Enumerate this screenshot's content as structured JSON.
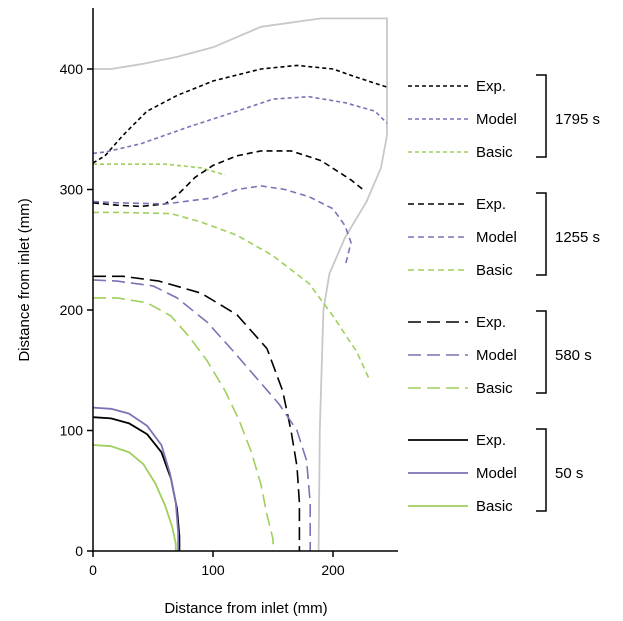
{
  "chart_data": {
    "type": "line",
    "xlabel": "Distance from inlet (mm)",
    "ylabel": "Distance from inlet (mm)",
    "xlim": [
      0,
      255
    ],
    "ylim": [
      0,
      450
    ],
    "xticks": [
      0,
      100,
      200
    ],
    "yticks": [
      0,
      100,
      200,
      300,
      400
    ],
    "grid": false,
    "legend_position": "right",
    "colors": {
      "exp": "#000000",
      "model": "#7a73b5",
      "basic": "#9fcf5c",
      "boundary": "#c8c8c8"
    },
    "boundary": {
      "x": [
        0,
        15,
        40,
        70,
        100,
        140,
        190,
        205,
        245,
        245,
        240,
        228,
        210,
        197,
        192,
        189,
        188
      ],
      "y": [
        400,
        400,
        404,
        410,
        418,
        435,
        442,
        442,
        442,
        345,
        318,
        290,
        260,
        230,
        200,
        100,
        0
      ]
    },
    "groups": [
      {
        "time": "1795 s",
        "series": [
          {
            "name": "Exp.",
            "x": [
              0,
              10,
              25,
              45,
              70,
              100,
              140,
              170,
              200,
              220,
              245
            ],
            "y": [
              322,
              328,
              345,
              365,
              378,
              390,
              400,
              403,
              400,
              393,
              385
            ]
          },
          {
            "name": "Model",
            "x": [
              0,
              10,
              40,
              80,
              120,
              150,
              180,
              210,
              235,
              245
            ],
            "y": [
              330,
              331,
              338,
              352,
              365,
              375,
              377,
              372,
              365,
              355
            ]
          },
          {
            "name": "Basic",
            "x": [
              0,
              20,
              60,
              90,
              110
            ],
            "y": [
              321,
              321,
              321,
              318,
              312
            ]
          }
        ]
      },
      {
        "time": "1255 s",
        "series": [
          {
            "name": "Exp.",
            "x": [
              0,
              20,
              40,
              60,
              70,
              85,
              100,
              120,
              140,
              165,
              190,
              215,
              225
            ],
            "y": [
              289,
              287,
              286,
              288,
              295,
              310,
              320,
              328,
              332,
              332,
              324,
              308,
              300
            ]
          },
          {
            "name": "Model",
            "x": [
              0,
              20,
              60,
              100,
              120,
              140,
              160,
              180,
              200,
              210,
              215,
              210
            ],
            "y": [
              290,
              289,
              288,
              293,
              300,
              303,
              300,
              294,
              284,
              270,
              256,
              236
            ]
          },
          {
            "name": "Basic",
            "x": [
              0,
              20,
              65,
              90,
              120,
              150,
              180,
              200,
              220,
              230
            ],
            "y": [
              281,
              281,
              280,
              273,
              262,
              245,
              222,
              195,
              165,
              143
            ]
          }
        ]
      },
      {
        "time": "580 s",
        "series": [
          {
            "name": "Exp.",
            "x": [
              0,
              25,
              55,
              90,
              120,
              145,
              158,
              165,
              170,
              172,
              172,
              172
            ],
            "y": [
              228,
              228,
              224,
              214,
              196,
              168,
              133,
              100,
              70,
              40,
              15,
              0
            ]
          },
          {
            "name": "Model",
            "x": [
              0,
              20,
              50,
              70,
              95,
              115,
              135,
              155,
              170,
              178,
              181,
              181
            ],
            "y": [
              225,
              224,
              220,
              210,
              190,
              168,
              145,
              122,
              100,
              75,
              40,
              0
            ]
          },
          {
            "name": "Basic",
            "x": [
              0,
              20,
              45,
              65,
              80,
              95,
              110,
              122,
              132,
              140,
              145,
              150,
              150
            ],
            "y": [
              210,
              210,
              206,
              195,
              178,
              158,
              133,
              108,
              82,
              55,
              30,
              10,
              0
            ]
          }
        ]
      },
      {
        "time": "50 s",
        "series": [
          {
            "name": "Exp.",
            "x": [
              0,
              15,
              30,
              45,
              57,
              65,
              70,
              72,
              72
            ],
            "y": [
              111,
              110,
              106,
              97,
              82,
              60,
              35,
              12,
              0
            ]
          },
          {
            "name": "Model",
            "x": [
              0,
              15,
              30,
              45,
              57,
              64,
              69,
              71,
              71
            ],
            "y": [
              119,
              118,
              114,
              104,
              88,
              65,
              40,
              15,
              0
            ]
          },
          {
            "name": "Basic",
            "x": [
              0,
              15,
              30,
              42,
              52,
              60,
              66,
              69,
              69
            ],
            "y": [
              88,
              87,
              82,
              72,
              56,
              38,
              20,
              6,
              0
            ]
          }
        ]
      }
    ]
  }
}
